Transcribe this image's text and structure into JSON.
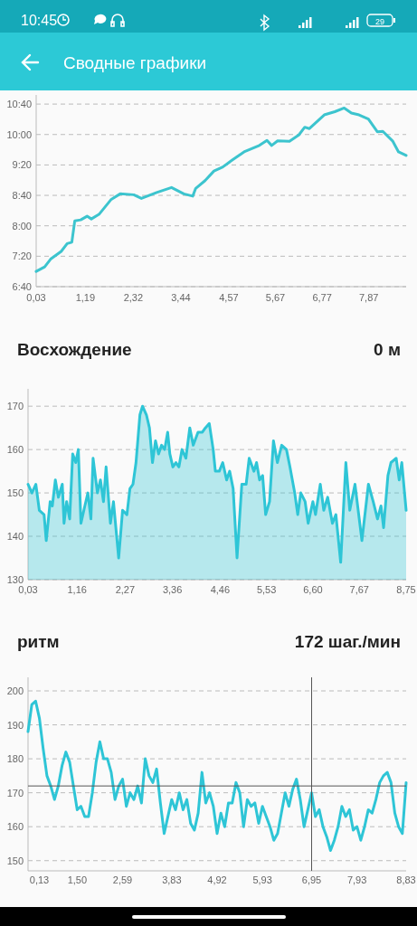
{
  "chart_data": [
    {
      "type": "line",
      "title": "Сводные графики",
      "annotations": [
        "10:45",
        "29"
      ],
      "xlim": [
        0.03,
        8.75
      ],
      "ylim": [
        6.6667,
        10.8667
      ],
      "xticks": [
        {
          "value": 0.03,
          "label": "0,03"
        },
        {
          "value": 1.19,
          "label": "1,19"
        },
        {
          "value": 2.32,
          "label": "2,32"
        },
        {
          "value": 3.44,
          "label": "3,44"
        },
        {
          "value": 4.57,
          "label": "4,57"
        },
        {
          "value": 5.67,
          "label": "5,67"
        },
        {
          "value": 6.77,
          "label": "6,77"
        },
        {
          "value": 7.87,
          "label": "7,87"
        }
      ],
      "yticks": [
        {
          "value": 6.6667,
          "label": "6:40"
        },
        {
          "value": 7.3333,
          "label": "7:20"
        },
        {
          "value": 8,
          "label": "8:00"
        },
        {
          "value": 8.6667,
          "label": "8:40"
        },
        {
          "value": 9.3333,
          "label": "9:20"
        },
        {
          "value": 10,
          "label": "10:00"
        },
        {
          "value": 10.6667,
          "label": "10:40"
        }
      ],
      "grid": "y",
      "line_style": "solid",
      "series": [
        {
          "color": "#3cc4ce",
          "x": [
            0.03,
            0.23,
            0.37,
            0.62,
            0.76,
            0.87,
            0.94,
            1.08,
            1.23,
            1.33,
            1.51,
            1.8,
            2.01,
            2.33,
            2.51,
            2.87,
            3.22,
            3.51,
            3.72,
            3.79,
            4.01,
            4.22,
            4.43,
            4.65,
            4.93,
            5.29,
            5.47,
            5.58,
            5.72,
            6.0,
            6.22,
            6.36,
            6.47,
            6.61,
            6.82,
            7.07,
            7.29,
            7.46,
            7.64,
            7.86,
            8.07,
            8.2,
            8.43,
            8.57,
            8.75
          ],
          "values": [
            7.0,
            7.1,
            7.27,
            7.44,
            7.61,
            7.64,
            8.11,
            8.13,
            8.21,
            8.15,
            8.25,
            8.58,
            8.7,
            8.68,
            8.6,
            8.73,
            8.84,
            8.7,
            8.65,
            8.82,
            8.99,
            9.2,
            9.29,
            9.44,
            9.62,
            9.76,
            9.87,
            9.76,
            9.86,
            9.85,
            9.99,
            10.16,
            10.13,
            10.25,
            10.43,
            10.5,
            10.58,
            10.47,
            10.43,
            10.34,
            10.06,
            10.07,
            9.86,
            9.62,
            9.54
          ]
        }
      ]
    },
    {
      "type": "area",
      "title": "Восхождение",
      "subtitle": "0 м",
      "xlim": [
        0.03,
        8.75
      ],
      "ylim": [
        130,
        174
      ],
      "xticks": [
        {
          "value": 0.03,
          "label": "0,03"
        },
        {
          "value": 1.16,
          "label": "1,16"
        },
        {
          "value": 2.27,
          "label": "2,27"
        },
        {
          "value": 3.36,
          "label": "3,36"
        },
        {
          "value": 4.46,
          "label": "4,46"
        },
        {
          "value": 5.53,
          "label": "5,53"
        },
        {
          "value": 6.6,
          "label": "6,60"
        },
        {
          "value": 7.67,
          "label": "7,67"
        },
        {
          "value": 8.75,
          "label": "8,75"
        }
      ],
      "yticks": [
        130,
        140,
        150,
        160,
        170
      ],
      "grid": "y",
      "line_style": "solid",
      "series": [
        {
          "color": "#2ec5d6",
          "x": [
            0.03,
            0.12,
            0.21,
            0.29,
            0.4,
            0.45,
            0.54,
            0.59,
            0.66,
            0.73,
            0.82,
            0.86,
            0.92,
            0.99,
            1.06,
            1.13,
            1.19,
            1.25,
            1.34,
            1.41,
            1.48,
            1.53,
            1.63,
            1.7,
            1.77,
            1.83,
            1.93,
            2.0,
            2.12,
            2.21,
            2.31,
            2.38,
            2.45,
            2.52,
            2.61,
            2.67,
            2.76,
            2.83,
            2.9,
            2.97,
            3.04,
            3.11,
            3.18,
            3.25,
            3.3,
            3.37,
            3.44,
            3.51,
            3.58,
            3.67,
            3.76,
            3.84,
            3.95,
            4.05,
            4.12,
            4.21,
            4.3,
            4.35,
            4.44,
            4.52,
            4.61,
            4.68,
            4.76,
            4.85,
            4.96,
            5.06,
            5.13,
            5.24,
            5.3,
            5.37,
            5.44,
            5.51,
            5.6,
            5.69,
            5.78,
            5.88,
            5.99,
            6.07,
            6.18,
            6.25,
            6.32,
            6.42,
            6.49,
            6.6,
            6.66,
            6.77,
            6.85,
            6.94,
            7.05,
            7.13,
            7.24,
            7.36,
            7.45,
            7.57,
            7.73,
            7.88,
            7.99,
            8.09,
            8.17,
            8.23,
            8.33,
            8.4,
            8.52,
            8.59,
            8.65,
            8.75
          ],
          "values": [
            152,
            150,
            152,
            146,
            145,
            139,
            148,
            147,
            153,
            149,
            152,
            143,
            148,
            144,
            159,
            157,
            160,
            143,
            147,
            150,
            144,
            158,
            150,
            153,
            148,
            156,
            143,
            148,
            135,
            146,
            145,
            151,
            152,
            157,
            168,
            170,
            168,
            165,
            157,
            162,
            159,
            161,
            160,
            164,
            159,
            156,
            157,
            156,
            160,
            158,
            165,
            161,
            164,
            164,
            165,
            166,
            160,
            155,
            155,
            157,
            153,
            155,
            151,
            135,
            152,
            152,
            158,
            155,
            157,
            153,
            154,
            145,
            148,
            162,
            157,
            161,
            160,
            156,
            150,
            145,
            150,
            148,
            143,
            148,
            145,
            152,
            146,
            149,
            143,
            145,
            134,
            157,
            146,
            152,
            139,
            152,
            148,
            144,
            147,
            142,
            154,
            157,
            158,
            153,
            157,
            146
          ]
        }
      ]
    },
    {
      "type": "line",
      "title": "ритм",
      "subtitle": "172 шаг./мин",
      "ylim": [
        147,
        204
      ],
      "yticks": [
        150,
        160,
        170,
        180,
        190,
        200
      ],
      "grid": "y",
      "line_style": "solid",
      "categories": [
        null,
        null,
        null,
        "0,13",
        null,
        null,
        null,
        null,
        null,
        null,
        null,
        null,
        null,
        "1,50",
        null,
        null,
        null,
        null,
        null,
        null,
        null,
        null,
        null,
        null,
        null,
        "2,59",
        null,
        null,
        null,
        null,
        null,
        null,
        null,
        null,
        null,
        null,
        null,
        null,
        "3,83",
        null,
        null,
        null,
        null,
        null,
        null,
        null,
        null,
        null,
        null,
        null,
        "4,92",
        null,
        null,
        null,
        null,
        null,
        null,
        null,
        null,
        null,
        null,
        null,
        "5,93",
        null,
        null,
        null,
        null,
        null,
        null,
        null,
        null,
        null,
        null,
        null,
        null,
        "6,95",
        null,
        null,
        null,
        null,
        null,
        null,
        null,
        null,
        null,
        null,
        null,
        "7,93",
        null,
        null,
        null,
        null,
        null,
        null,
        null,
        null,
        null,
        null,
        null,
        null,
        "8,83"
      ],
      "ref_lines": [
        {
          "axis": "x",
          "value": "6,95",
          "color": "#555555"
        },
        {
          "axis": "y",
          "value": 172,
          "color": "#555555"
        }
      ],
      "series": [
        {
          "color": "#2ec5d6",
          "values": [
            188,
            196,
            197,
            192,
            183,
            175,
            172,
            168,
            172,
            178,
            182,
            179,
            172,
            165,
            166,
            163,
            163,
            170,
            179,
            185,
            180,
            180,
            176,
            168,
            172,
            174,
            166,
            170,
            168,
            172,
            167,
            180,
            175,
            173,
            177,
            167,
            158,
            163,
            168,
            165,
            170,
            165,
            168,
            161,
            159,
            164,
            176,
            167,
            170,
            166,
            158,
            164,
            160,
            167,
            167,
            173,
            170,
            160,
            168,
            166,
            167,
            161,
            166,
            163,
            160,
            156,
            158,
            164,
            170,
            166,
            171,
            174,
            168,
            160,
            165,
            170,
            163,
            165,
            160,
            157,
            153,
            156,
            160,
            166,
            163,
            165,
            159,
            160,
            156,
            160,
            165,
            164,
            168,
            173,
            175,
            176,
            173,
            164,
            160,
            158,
            173
          ]
        }
      ]
    }
  ]
}
